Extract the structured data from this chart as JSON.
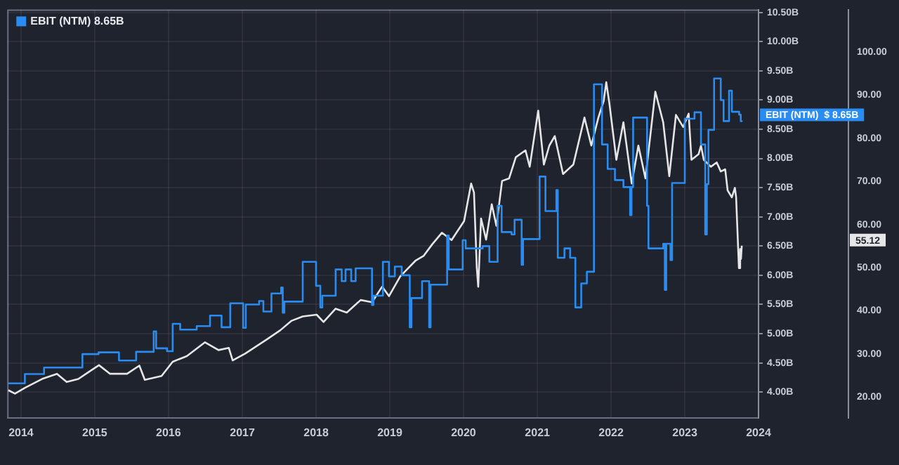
{
  "chart_data": {
    "type": "line",
    "legend": "top left",
    "grid": true,
    "xlim": [
      "2013-10-28",
      "2024-01-01"
    ],
    "xticks": [
      "2014",
      "2015",
      "2016",
      "2017",
      "2018",
      "2019",
      "2020",
      "2021",
      "2022",
      "2023",
      "2024"
    ],
    "ylim": [
      3.56,
      10.54
    ],
    "yticks": [
      {
        "value": 4,
        "label": "4.00B"
      },
      {
        "value": 4.5,
        "label": "4.50B"
      },
      {
        "value": 5,
        "label": "5.00B"
      },
      {
        "value": 5.5,
        "label": "5.50B"
      },
      {
        "value": 6,
        "label": "6.00B"
      },
      {
        "value": 6.5,
        "label": "6.50B"
      },
      {
        "value": 7,
        "label": "7.00B"
      },
      {
        "value": 7.5,
        "label": "7.50B"
      },
      {
        "value": 8,
        "label": "8.00B"
      },
      {
        "value": 8.5,
        "label": "8.50B"
      },
      {
        "value": 9,
        "label": "9.00B"
      },
      {
        "value": 9.5,
        "label": "9.50B"
      },
      {
        "value": 10,
        "label": "10.00B"
      },
      {
        "value": 10.5,
        "label": "10.50B"
      }
    ],
    "y2lim": [
      15.2,
      109.7
    ],
    "y2ticks": [
      {
        "value": 20,
        "label": "20.00"
      },
      {
        "value": 30,
        "label": "30.00"
      },
      {
        "value": 40,
        "label": "40.00"
      },
      {
        "value": 50,
        "label": "50.00"
      },
      {
        "value": 60,
        "label": "60.00"
      },
      {
        "value": 70,
        "label": "70.00"
      },
      {
        "value": 80,
        "label": "80.00"
      },
      {
        "value": 90,
        "label": "90.00"
      },
      {
        "value": 100,
        "label": "100.00"
      }
    ],
    "annotations": [
      "EBIT (NTM)  $ 8.65B",
      "55.12"
    ],
    "series": [
      {
        "name": "EBIT (NTM) 8.65B",
        "type": "step",
        "color": "#2a8cf0",
        "x": [
          "2013-10-28",
          "2014-01-20",
          "2014-04-25",
          "2014-11-01",
          "2015-01-20",
          "2015-05-01",
          "2015-07-25",
          "2015-10-20",
          "2015-11-01",
          "2015-12-25",
          "2016-01-22",
          "2016-02-28",
          "2016-05-20",
          "2016-07-25",
          "2016-09-20",
          "2016-11-02",
          "2017-01-05",
          "2017-01-18",
          "2017-03-25",
          "2017-04-15",
          "2017-05-25",
          "2017-07-12",
          "2017-07-20",
          "2017-07-28",
          "2017-10-27",
          "2018-01-01",
          "2018-01-22",
          "2018-02-01",
          "2018-04-08",
          "2018-05-08",
          "2018-05-27",
          "2018-06-24",
          "2018-07-16",
          "2018-10-05",
          "2018-10-12",
          "2018-11-28",
          "2018-12-28",
          "2019-01-26",
          "2019-03-01",
          "2019-04-10",
          "2019-04-18",
          "2019-06-10",
          "2019-07-15",
          "2019-07-22",
          "2019-10-12",
          "2019-10-20",
          "2019-12-28",
          "2020-01-12",
          "2020-04-05",
          "2020-05-08",
          "2020-06-18",
          "2020-07-08",
          "2020-08-26",
          "2020-09-10",
          "2020-10-15",
          "2020-10-22",
          "2021-01-12",
          "2021-02-10",
          "2021-04-05",
          "2021-04-12",
          "2021-05-15",
          "2021-06-12",
          "2021-07-08",
          "2021-08-06",
          "2021-09-03",
          "2021-10-08",
          "2021-11-17",
          "2021-12-15",
          "2022-01-20",
          "2022-03-03",
          "2022-04-05",
          "2022-04-12",
          "2022-04-20",
          "2022-06-28",
          "2022-07-05",
          "2022-09-16",
          "2022-09-24",
          "2022-10-01",
          "2022-10-22",
          "2022-10-30",
          "2023-01-01",
          "2023-02-18",
          "2023-03-22",
          "2023-04-12",
          "2023-04-20",
          "2023-04-28",
          "2023-05-26",
          "2023-06-28",
          "2023-07-12",
          "2023-08-08",
          "2023-08-22",
          "2023-09-27",
          "2023-10-05",
          "2023-10-10"
        ],
        "values": [
          4.15,
          4.31,
          4.42,
          4.65,
          4.68,
          4.54,
          4.69,
          5.04,
          4.75,
          4.7,
          5.17,
          5.07,
          5.13,
          5.31,
          5.11,
          5.52,
          5.1,
          5.5,
          5.56,
          5.38,
          5.69,
          5.79,
          5.36,
          5.55,
          6.23,
          5.82,
          5.45,
          5.65,
          6.1,
          5.9,
          6.1,
          5.9,
          6.12,
          5.49,
          5.65,
          6.23,
          5.98,
          6.15,
          6.0,
          5.11,
          5.61,
          5.9,
          5.11,
          5.84,
          6.68,
          6.1,
          6.6,
          6.46,
          6.5,
          6.23,
          7.19,
          6.74,
          6.7,
          6.95,
          6.18,
          6.62,
          7.69,
          7.1,
          7.46,
          6.3,
          6.46,
          6.3,
          5.45,
          5.86,
          6.06,
          9.27,
          8.24,
          7.82,
          7.63,
          7.51,
          7.03,
          7.51,
          8.7,
          7.19,
          6.46,
          6.54,
          5.75,
          6.54,
          6.26,
          7.58,
          8.68,
          8.79,
          8.24,
          6.7,
          7.56,
          8.49,
          9.37,
          9.0,
          8.64,
          9.16,
          8.8,
          8.75,
          8.64,
          8.65
        ]
      },
      {
        "axis": "y2",
        "color": "#e6e6e6",
        "x": [
          "2013-10-30",
          "2013-12-02",
          "2014-01-22",
          "2014-04-20",
          "2014-06-28",
          "2014-08-15",
          "2014-10-12",
          "2014-11-28",
          "2015-01-22",
          "2015-03-18",
          "2015-06-10",
          "2015-08-10",
          "2015-09-06",
          "2015-11-28",
          "2016-01-22",
          "2016-04-01",
          "2016-06-30",
          "2016-09-05",
          "2016-10-26",
          "2016-11-14",
          "2017-01-15",
          "2017-04-30",
          "2017-07-08",
          "2017-09-02",
          "2017-10-27",
          "2018-01-04",
          "2018-02-07",
          "2018-04-08",
          "2018-06-02",
          "2018-08-10",
          "2018-10-05",
          "2018-11-24",
          "2018-12-28",
          "2019-02-22",
          "2019-05-08",
          "2019-06-17",
          "2019-07-30",
          "2019-09-16",
          "2019-11-03",
          "2020-01-04",
          "2020-02-08",
          "2020-02-22",
          "2020-03-07",
          "2020-03-14",
          "2020-03-28",
          "2020-04-22",
          "2020-05-20",
          "2020-06-12",
          "2020-07-10",
          "2020-08-14",
          "2020-09-16",
          "2020-11-03",
          "2020-11-24",
          "2021-01-05",
          "2021-02-02",
          "2021-03-01",
          "2021-03-28",
          "2021-05-08",
          "2021-06-28",
          "2021-08-22",
          "2021-09-25",
          "2021-10-30",
          "2021-11-25",
          "2021-12-08",
          "2021-12-24",
          "2022-01-27",
          "2022-03-03",
          "2022-04-13",
          "2022-05-16",
          "2022-06-20",
          "2022-08-08",
          "2022-09-16",
          "2022-10-16",
          "2022-11-18",
          "2022-12-24",
          "2023-01-20",
          "2023-02-03",
          "2023-03-10",
          "2023-03-22",
          "2023-04-05",
          "2023-05-10",
          "2023-06-08",
          "2023-06-28",
          "2023-07-20",
          "2023-08-01",
          "2023-08-22",
          "2023-09-06",
          "2023-09-12",
          "2023-09-26",
          "2023-10-02",
          "2023-10-06",
          "2023-10-10"
        ],
        "values": [
          21.6,
          20.8,
          22.2,
          24.3,
          25.4,
          23.5,
          24.2,
          25.7,
          27.4,
          25.4,
          25.4,
          27.3,
          24.0,
          24.9,
          28.2,
          29.5,
          32.7,
          30.9,
          31.4,
          28.5,
          30.1,
          33.3,
          35.5,
          37.7,
          38.7,
          39.1,
          37.4,
          40.5,
          39.6,
          42.5,
          42.0,
          45.6,
          43.4,
          48.0,
          51.6,
          52.7,
          55.4,
          58.1,
          56.4,
          60.8,
          69.5,
          67.4,
          49.9,
          45.6,
          61.4,
          56.5,
          64.7,
          59.7,
          70.1,
          70.7,
          75.6,
          77.2,
          73.4,
          86.4,
          73.9,
          78.3,
          80.5,
          71.7,
          73.9,
          84.8,
          78.3,
          84.8,
          88.6,
          93.0,
          87.9,
          75.0,
          83.7,
          69.5,
          78.3,
          70.7,
          90.8,
          83.7,
          71.2,
          85.4,
          82.6,
          85.7,
          75.0,
          76.3,
          78.3,
          75.0,
          73.4,
          74.4,
          72.3,
          72.8,
          67.9,
          66.3,
          68.5,
          66.3,
          49.9,
          54.3,
          52.0,
          55.1
        ]
      }
    ]
  }
}
